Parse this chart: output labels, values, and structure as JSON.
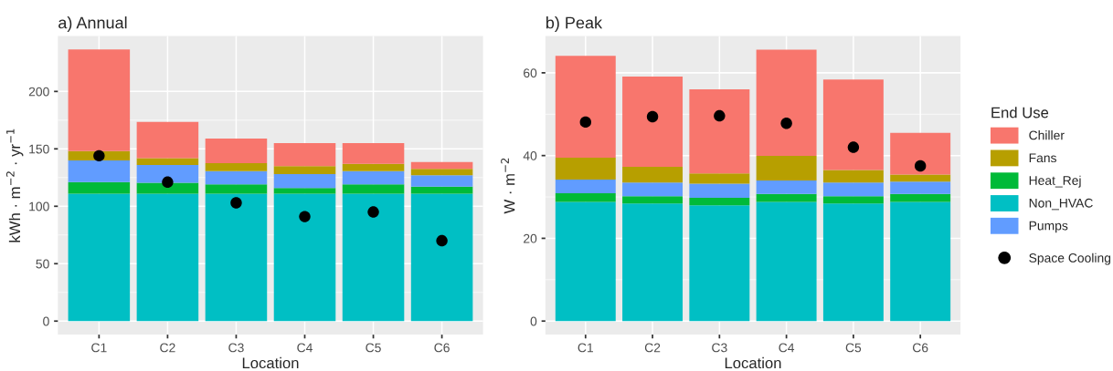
{
  "chart_data": [
    {
      "type": "bar",
      "title": "a) Annual",
      "xlabel": "Location",
      "ylabel": "kWh · m$^{−2}$ · yr$^{−1}$",
      "categories": [
        "C1",
        "C2",
        "C3",
        "C4",
        "C5",
        "C6"
      ],
      "stacked": true,
      "ylim": [
        -11.8,
        248.3
      ],
      "yticks": [
        0,
        50,
        100,
        150,
        200
      ],
      "grid": true,
      "series": [
        {
          "color": "#00bfc4",
          "values": [
            111,
            111,
            111,
            111,
            111,
            111
          ]
        },
        {
          "color": "#00ba38",
          "values": [
            10,
            9.5,
            8,
            5,
            8,
            6
          ]
        },
        {
          "color": "#619cff",
          "values": [
            19,
            15.5,
            11.5,
            12,
            11.5,
            10
          ]
        },
        {
          "color": "#b79f00",
          "values": [
            8,
            6,
            7,
            7,
            6.5,
            5.5
          ]
        },
        {
          "color": "#f8766d",
          "values": [
            88.5,
            31.5,
            21.5,
            20,
            18,
            6
          ]
        },
        {
          "type": "scatter",
          "color": "#000000",
          "marker": "circle",
          "x": [
            "C1",
            "C2",
            "C3",
            "C4",
            "C5",
            "C6"
          ],
          "values": [
            144,
            121,
            103,
            91,
            95,
            70
          ]
        }
      ]
    },
    {
      "type": "bar",
      "title": "b) Peak",
      "xlabel": "Location",
      "ylabel": "W · m$^{−2}$",
      "categories": [
        "C1",
        "C2",
        "C3",
        "C4",
        "C5",
        "C6"
      ],
      "stacked": true,
      "ylim": [
        -3.28,
        68.9
      ],
      "yticks": [
        0,
        20,
        40,
        60
      ],
      "grid": true,
      "legend": "right",
      "legend_title": "End Use",
      "series": [
        {
          "name": "Non_HVAC",
          "color": "#00bfc4",
          "values": [
            28.8,
            28.4,
            28.0,
            28.8,
            28.4,
            28.8
          ]
        },
        {
          "name": "Heat_Rej",
          "color": "#00ba38",
          "values": [
            2.1,
            1.8,
            1.8,
            1.9,
            1.8,
            1.9
          ]
        },
        {
          "name": "Pumps",
          "color": "#619cff",
          "values": [
            3.3,
            3.3,
            3.4,
            3.3,
            3.3,
            3.0
          ]
        },
        {
          "name": "Fans",
          "color": "#b79f00",
          "values": [
            5.3,
            3.8,
            2.5,
            5.9,
            3.0,
            1.7
          ]
        },
        {
          "name": "Chiller",
          "color": "#f8766d",
          "values": [
            24.6,
            21.8,
            20.3,
            25.7,
            21.9,
            10.1
          ]
        },
        {
          "name": "Space Cooling",
          "type": "scatter",
          "color": "#000000",
          "marker": "circle",
          "x": [
            "C1",
            "C2",
            "C3",
            "C4",
            "C5",
            "C6"
          ],
          "values": [
            48.1,
            49.4,
            49.6,
            47.8,
            42.0,
            37.5
          ]
        }
      ]
    }
  ]
}
